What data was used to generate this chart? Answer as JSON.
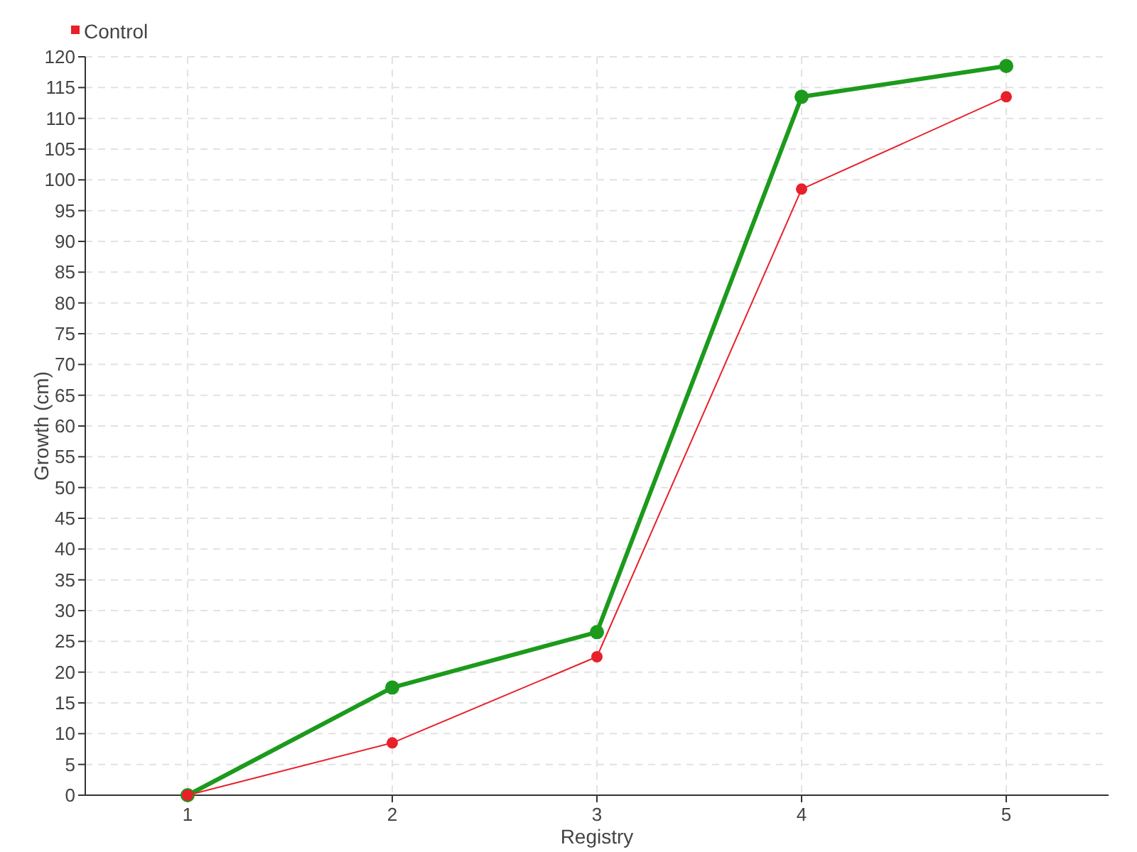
{
  "chart_data": {
    "type": "line",
    "xlabel": "Registry",
    "ylabel": "Growth (cm)",
    "x": [
      1,
      2,
      3,
      4,
      5
    ],
    "series": [
      {
        "color": "#1c9a1c",
        "values": [
          0,
          17.5,
          26.5,
          113.5,
          118.5
        ]
      },
      {
        "name": "Control",
        "color": "#e8202a",
        "values": [
          0,
          8.5,
          22.5,
          98.5,
          113.5
        ]
      }
    ],
    "xlim": [
      0.5,
      5.5
    ],
    "xticks": [
      1,
      2,
      3,
      4,
      5
    ],
    "ylim": [
      0,
      120
    ],
    "yticks": [
      0,
      5,
      10,
      15,
      20,
      25,
      30,
      35,
      40,
      45,
      50,
      55,
      60,
      65,
      70,
      75,
      80,
      85,
      90,
      95,
      100,
      105,
      110,
      115,
      120
    ],
    "grid": true,
    "legend": "top left",
    "marker": "circle",
    "line_style": "solid"
  }
}
